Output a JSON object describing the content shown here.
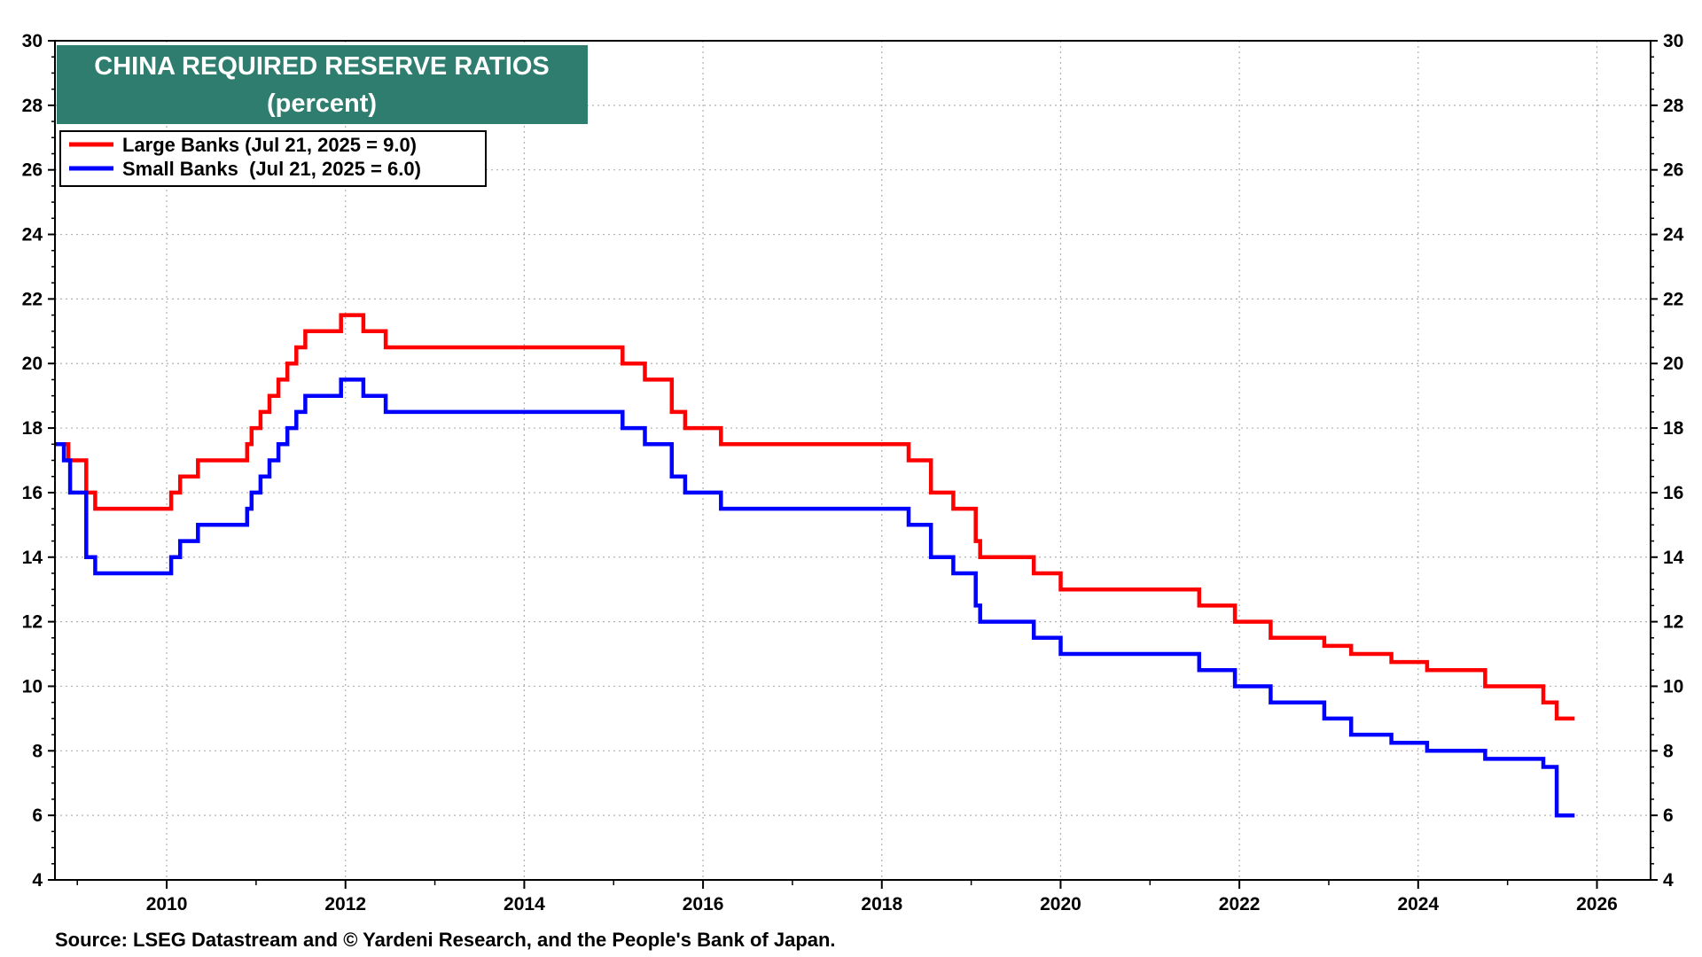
{
  "chart_data": {
    "type": "line",
    "step": true,
    "title": "CHINA REQUIRED RESERVE RATIOS",
    "subtitle": "(percent)",
    "source": "Source: LSEG Datastream and © Yardeni Research, and the People's Bank of Japan.",
    "xlim": [
      2008.75,
      2026.6
    ],
    "ylim": [
      4,
      30
    ],
    "x_ticks": [
      2010,
      2012,
      2014,
      2016,
      2018,
      2020,
      2022,
      2024,
      2026
    ],
    "x_tick_labels": [
      "2010",
      "2012",
      "2014",
      "2016",
      "2018",
      "2020",
      "2022",
      "2024",
      "2026"
    ],
    "y_ticks": [
      4,
      6,
      8,
      10,
      12,
      14,
      16,
      18,
      20,
      22,
      24,
      26,
      28,
      30
    ],
    "y_tick_labels": [
      "4",
      "6",
      "8",
      "10",
      "12",
      "14",
      "16",
      "18",
      "20",
      "22",
      "24",
      "26",
      "28",
      "30"
    ],
    "y_axis_both_sides": true,
    "grid": true,
    "legend_position": "top-left",
    "title_box_color": "#2e7d6e",
    "series": [
      {
        "name": "Large Banks (Jul 21, 2025 = 9.0)",
        "color": "#ff0000",
        "x": [
          2008.75,
          2008.9,
          2009.1,
          2009.2,
          2010.05,
          2010.15,
          2010.35,
          2010.9,
          2010.95,
          2011.05,
          2011.15,
          2011.25,
          2011.35,
          2011.45,
          2011.55,
          2011.95,
          2012.2,
          2012.45,
          2015.1,
          2015.35,
          2015.65,
          2015.8,
          2016.2,
          2018.3,
          2018.55,
          2018.8,
          2019.05,
          2019.1,
          2019.7,
          2020.0,
          2021.55,
          2021.95,
          2022.35,
          2022.95,
          2023.25,
          2023.7,
          2024.1,
          2024.75,
          2025.4,
          2025.55
        ],
        "values": [
          17.5,
          17.0,
          16.0,
          15.5,
          16.0,
          16.5,
          17.0,
          17.5,
          18.0,
          18.5,
          19.0,
          19.5,
          20.0,
          20.5,
          21.0,
          21.5,
          21.0,
          20.5,
          20.0,
          19.5,
          18.5,
          18.0,
          17.5,
          17.0,
          16.0,
          15.5,
          14.5,
          14.0,
          13.5,
          13.0,
          12.5,
          12.0,
          11.5,
          11.25,
          11.0,
          10.75,
          10.5,
          10.0,
          9.5,
          9.0
        ]
      },
      {
        "name": "Small Banks  (Jul 21, 2025 = 6.0)",
        "color": "#0000ff",
        "x": [
          2008.75,
          2008.85,
          2008.92,
          2009.1,
          2009.2,
          2010.05,
          2010.15,
          2010.35,
          2010.9,
          2010.95,
          2011.05,
          2011.15,
          2011.25,
          2011.35,
          2011.45,
          2011.55,
          2011.95,
          2012.2,
          2012.45,
          2015.1,
          2015.35,
          2015.65,
          2015.8,
          2016.2,
          2018.3,
          2018.55,
          2018.8,
          2019.05,
          2019.1,
          2019.7,
          2020.0,
          2021.55,
          2021.95,
          2022.35,
          2022.95,
          2023.25,
          2023.7,
          2024.1,
          2024.75,
          2025.4,
          2025.55
        ],
        "values": [
          17.5,
          17.0,
          16.0,
          14.0,
          13.5,
          14.0,
          14.5,
          15.0,
          15.5,
          16.0,
          16.5,
          17.0,
          17.5,
          18.0,
          18.5,
          19.0,
          19.5,
          19.0,
          18.5,
          18.0,
          17.5,
          16.5,
          16.0,
          15.5,
          15.0,
          14.0,
          13.5,
          12.5,
          12.0,
          11.5,
          11.0,
          10.5,
          10.0,
          9.5,
          9.0,
          8.5,
          8.25,
          8.0,
          7.75,
          7.5,
          6.0
        ]
      }
    ]
  }
}
